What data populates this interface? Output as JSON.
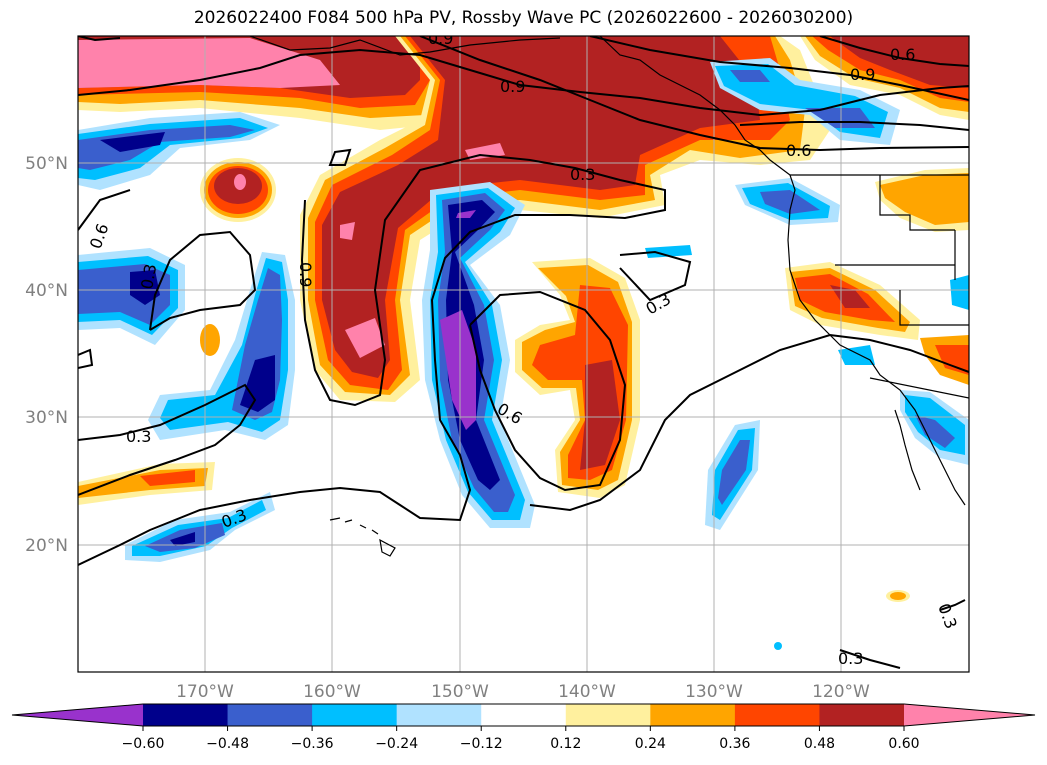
{
  "title": "2026022400 F084 500 hPa PV, Rossby Wave PC (2026022600 - 2026030200)",
  "latitude_labels": [
    "50°N",
    "40°N",
    "30°N",
    "20°N"
  ],
  "longitude_labels": [
    "170°W",
    "160°W",
    "150°W",
    "140°W",
    "130°W",
    "120°W"
  ],
  "colorbar": {
    "ticks": [
      "−0.60",
      "−0.48",
      "−0.36",
      "−0.24",
      "−0.12",
      "0.12",
      "0.24",
      "0.36",
      "0.48",
      "0.60"
    ],
    "colors": [
      "#9932cc",
      "#00008b",
      "#3a5fcd",
      "#00bfff",
      "#b0e2ff",
      "#ffffff",
      "#fff09e",
      "#ffa500",
      "#ff4500",
      "#b22222",
      "#ff82ab"
    ]
  },
  "contour_labels": [
    "0.9",
    "0.6",
    "0.9",
    "0.6",
    "0.9",
    "0.3",
    "0.6",
    "0.3",
    "0.9",
    "0.3",
    "0.6",
    "0.3",
    "0.3",
    "0.3",
    "0.3"
  ],
  "colors": {
    "frame": "#000000",
    "grid": "#b0b0b0",
    "coast": "#000000"
  }
}
